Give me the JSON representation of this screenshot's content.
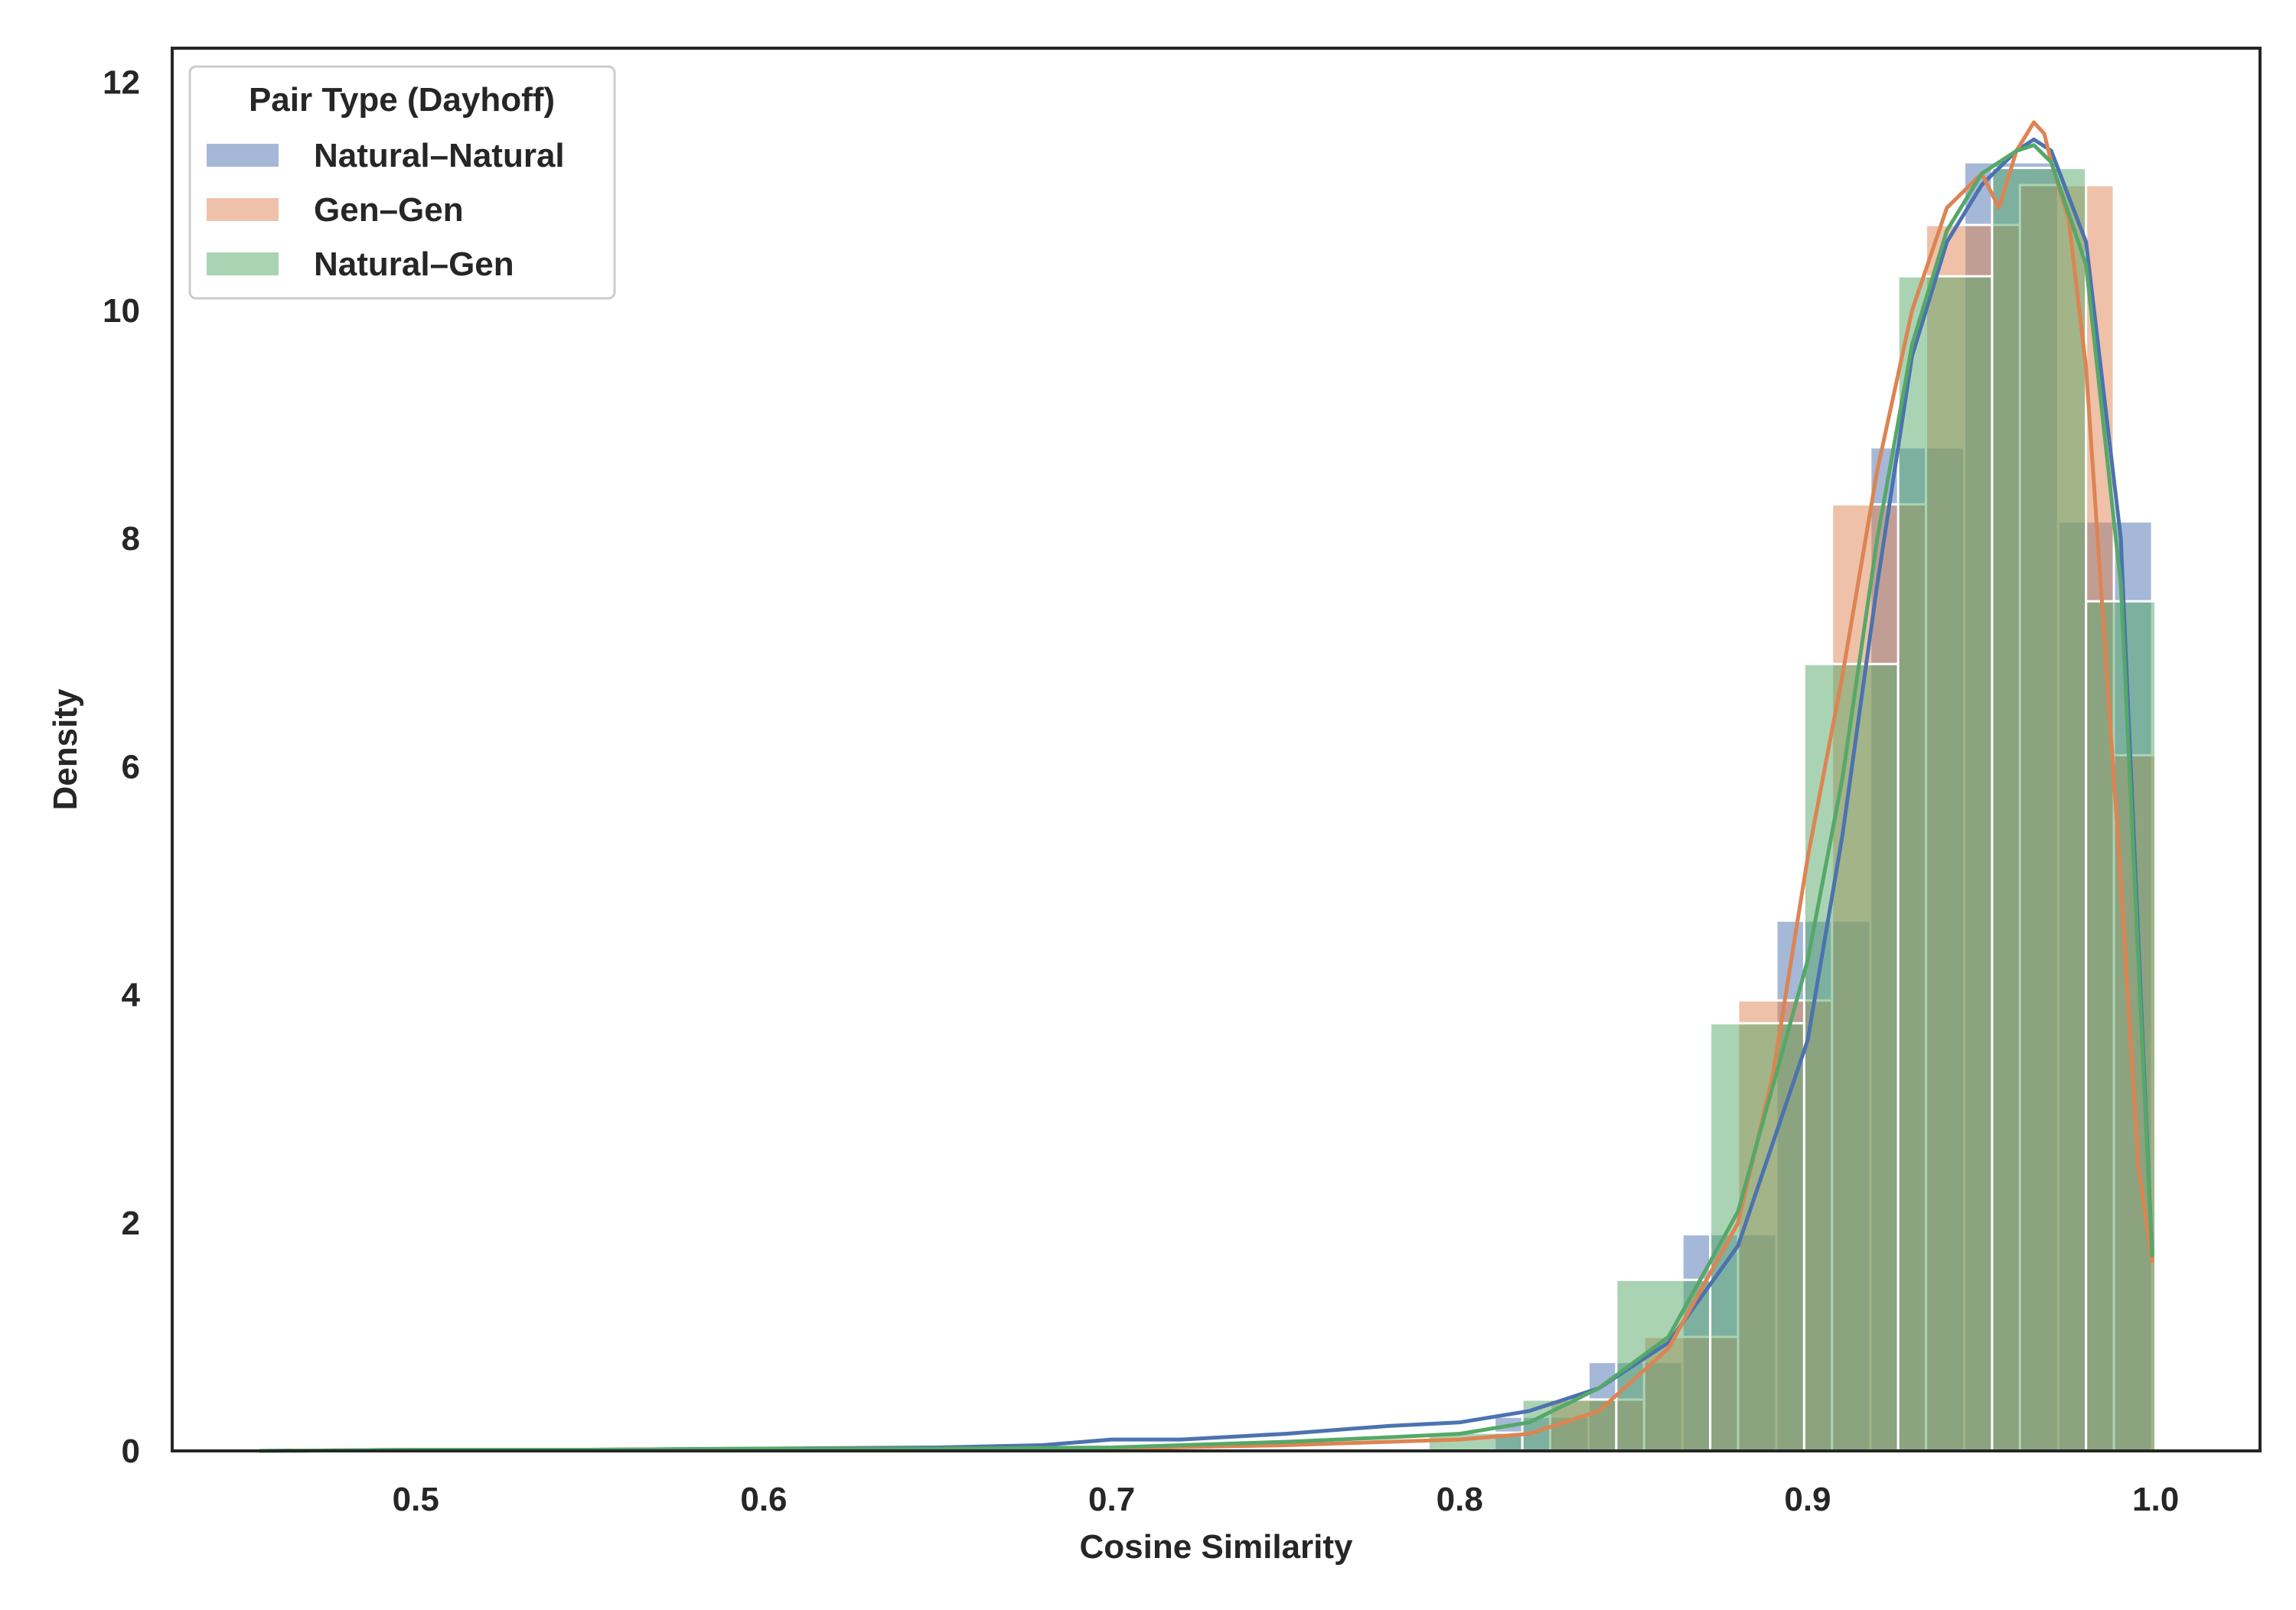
{
  "chart_data": {
    "type": "histogram",
    "title": "",
    "xlabel": "Cosine Similarity",
    "ylabel": "Density",
    "xlim": [
      0.43,
      1.03
    ],
    "ylim": [
      0,
      12.3
    ],
    "xticks": [
      "0.5",
      "0.6",
      "0.7",
      "0.8",
      "0.9",
      "1.0"
    ],
    "yticks": [
      "0",
      "2",
      "4",
      "6",
      "8",
      "10",
      "12"
    ],
    "grid": false,
    "legend": {
      "title": "Pair Type (Dayhoff)",
      "placement": "top-left"
    },
    "series": [
      {
        "name": "Natural–Natural",
        "color": "#4c72b0",
        "bins": [
          {
            "x0": 0.81,
            "x1": 0.837,
            "density": 0.3
          },
          {
            "x0": 0.837,
            "x1": 0.864,
            "density": 0.78
          },
          {
            "x0": 0.864,
            "x1": 0.891,
            "density": 1.9
          },
          {
            "x0": 0.891,
            "x1": 0.918,
            "density": 4.65
          },
          {
            "x0": 0.918,
            "x1": 0.945,
            "density": 8.8
          },
          {
            "x0": 0.945,
            "x1": 0.972,
            "density": 11.3
          },
          {
            "x0": 0.972,
            "x1": 0.999,
            "density": 8.15
          }
        ],
        "kde": {
          "x": [
            0.455,
            0.5,
            0.55,
            0.6,
            0.65,
            0.68,
            0.7,
            0.72,
            0.75,
            0.78,
            0.8,
            0.82,
            0.84,
            0.86,
            0.88,
            0.9,
            0.91,
            0.92,
            0.93,
            0.94,
            0.95,
            0.96,
            0.965,
            0.97,
            0.98,
            0.99,
            0.999
          ],
          "y": [
            0.0,
            0.01,
            0.01,
            0.02,
            0.03,
            0.05,
            0.1,
            0.1,
            0.15,
            0.22,
            0.25,
            0.35,
            0.55,
            0.95,
            1.8,
            3.6,
            5.4,
            7.6,
            9.6,
            10.6,
            11.1,
            11.4,
            11.5,
            11.4,
            10.6,
            8.0,
            1.7
          ]
        }
      },
      {
        "name": "Gen–Gen",
        "color": "#dd8452",
        "bins": [
          {
            "x0": 0.826,
            "x1": 0.853,
            "density": 0.45
          },
          {
            "x0": 0.853,
            "x1": 0.88,
            "density": 1.0
          },
          {
            "x0": 0.88,
            "x1": 0.907,
            "density": 3.95
          },
          {
            "x0": 0.907,
            "x1": 0.934,
            "density": 8.3
          },
          {
            "x0": 0.934,
            "x1": 0.961,
            "density": 10.75
          },
          {
            "x0": 0.961,
            "x1": 0.988,
            "density": 11.1
          },
          {
            "x0": 0.988,
            "x1": 1.0,
            "density": 6.1
          }
        ],
        "kde": {
          "x": [
            0.7,
            0.75,
            0.8,
            0.82,
            0.84,
            0.86,
            0.88,
            0.89,
            0.9,
            0.91,
            0.92,
            0.93,
            0.94,
            0.95,
            0.955,
            0.96,
            0.965,
            0.968,
            0.97,
            0.975,
            0.98,
            0.99,
            0.995,
            0.999
          ],
          "y": [
            0.02,
            0.05,
            0.1,
            0.15,
            0.35,
            0.9,
            2.0,
            3.3,
            5.2,
            6.8,
            8.6,
            10.0,
            10.9,
            11.2,
            10.9,
            11.4,
            11.65,
            11.55,
            11.3,
            10.8,
            9.5,
            5.0,
            2.5,
            1.65
          ]
        }
      },
      {
        "name": "Natural–Gen",
        "color": "#55a868",
        "bins": [
          {
            "x0": 0.791,
            "x1": 0.818,
            "density": 0.16
          },
          {
            "x0": 0.818,
            "x1": 0.845,
            "density": 0.45
          },
          {
            "x0": 0.845,
            "x1": 0.872,
            "density": 1.5
          },
          {
            "x0": 0.872,
            "x1": 0.899,
            "density": 3.75
          },
          {
            "x0": 0.899,
            "x1": 0.926,
            "density": 6.9
          },
          {
            "x0": 0.926,
            "x1": 0.953,
            "density": 10.3
          },
          {
            "x0": 0.953,
            "x1": 0.98,
            "density": 11.25
          },
          {
            "x0": 0.98,
            "x1": 1.0,
            "density": 7.45
          }
        ],
        "kde": {
          "x": [
            0.455,
            0.5,
            0.55,
            0.6,
            0.65,
            0.7,
            0.75,
            0.78,
            0.8,
            0.82,
            0.84,
            0.86,
            0.88,
            0.9,
            0.91,
            0.92,
            0.93,
            0.94,
            0.95,
            0.96,
            0.965,
            0.97,
            0.98,
            0.99,
            0.999
          ],
          "y": [
            0.0,
            0.01,
            0.01,
            0.02,
            0.02,
            0.03,
            0.08,
            0.12,
            0.15,
            0.25,
            0.55,
            1.0,
            2.1,
            4.3,
            5.9,
            8.0,
            9.7,
            10.7,
            11.2,
            11.4,
            11.45,
            11.3,
            10.4,
            7.6,
            1.7
          ]
        }
      }
    ]
  }
}
